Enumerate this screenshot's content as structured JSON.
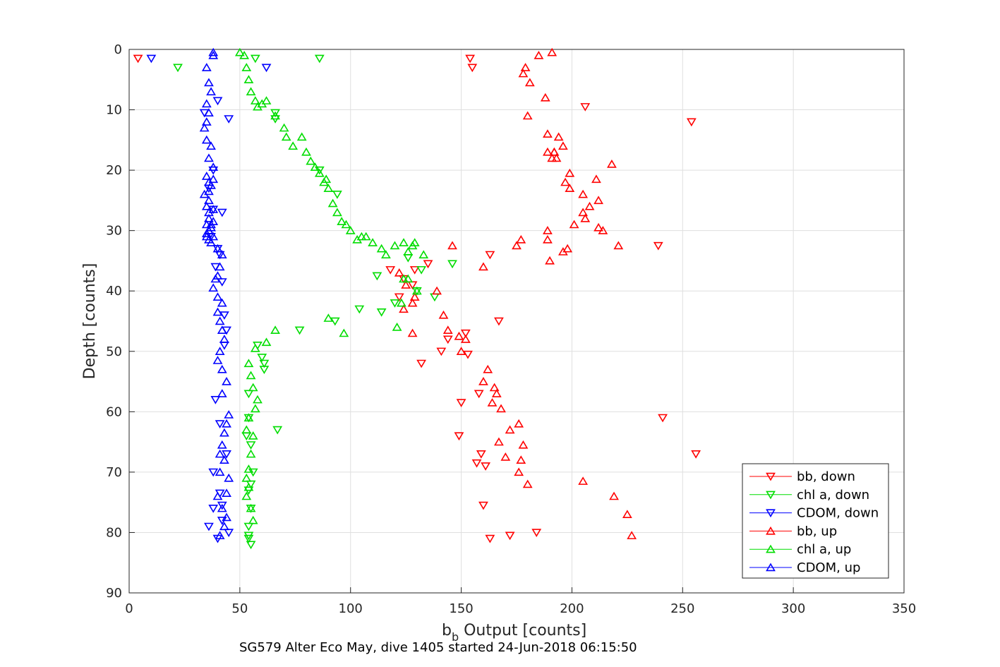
{
  "chart_data": {
    "type": "scatter",
    "xlabel": {
      "base": "b",
      "sub": "b",
      "rest": " Output [counts]"
    },
    "ylabel": "Depth [counts]",
    "subtitle": "SG579 Alter Eco May, dive 1405 started 24-Jun-2018 06:15:50",
    "xlim": [
      0,
      350
    ],
    "ylim": [
      0,
      90
    ],
    "y_reversed": true,
    "xticks": [
      "0",
      "50",
      "100",
      "150",
      "200",
      "250",
      "300",
      "350"
    ],
    "yticks": [
      "0",
      "10",
      "20",
      "30",
      "40",
      "50",
      "60",
      "70",
      "80",
      "90"
    ],
    "grid": true,
    "legend_position": "bottom-right",
    "series": [
      {
        "name": "bb, down",
        "color": "#ff0000",
        "marker": "triangle-down",
        "x": [
          4,
          154,
          155,
          206,
          254,
          239,
          135,
          129,
          124,
          128,
          122,
          118,
          132,
          141,
          150,
          158,
          163,
          159,
          161,
          157,
          167,
          172,
          184,
          241,
          256,
          163,
          160,
          149,
          144,
          152,
          153
        ],
        "y": [
          1.5,
          1.5,
          3,
          9.5,
          12,
          32.5,
          35.5,
          36.5,
          38,
          39,
          41,
          36.5,
          52,
          50,
          58.5,
          57,
          34,
          67,
          69,
          68.5,
          45,
          80.5,
          80,
          61,
          67,
          81,
          75.5,
          64,
          48,
          47,
          50.5
        ]
      },
      {
        "name": "chl a, down",
        "color": "#00dd00",
        "marker": "triangle-down",
        "x": [
          22,
          57,
          86,
          66,
          66,
          86,
          94,
          104,
          146,
          132,
          126,
          130,
          138,
          120,
          114,
          112,
          93,
          77,
          67,
          61,
          60,
          61,
          58,
          54,
          54,
          53,
          55,
          56,
          55,
          54,
          55,
          54,
          54,
          54,
          55
        ],
        "y": [
          3,
          1.5,
          1.5,
          10.5,
          11.5,
          20,
          24,
          43,
          35.5,
          36.5,
          34.5,
          40,
          41,
          42,
          43.5,
          37.5,
          45,
          46.5,
          63,
          53,
          51,
          52,
          49,
          57,
          61,
          64,
          65.5,
          70,
          72,
          73,
          76,
          79,
          80.5,
          81,
          82
        ]
      },
      {
        "name": "CDOM, down",
        "color": "#0000ff",
        "marker": "triangle-down",
        "x": [
          10,
          62,
          45,
          38,
          36,
          34,
          40,
          38,
          37,
          40,
          39,
          42,
          44,
          43,
          39,
          41,
          38,
          41,
          42,
          38,
          36,
          40,
          42,
          41,
          42,
          43,
          44,
          45
        ],
        "y": [
          1.5,
          3,
          11.5,
          20,
          23,
          10.5,
          8.5,
          26.5,
          31,
          33,
          36,
          38.5,
          46.5,
          49,
          58,
          62,
          70,
          73.5,
          75.5,
          76,
          79,
          81,
          78,
          34,
          27,
          44,
          67,
          80
        ]
      },
      {
        "name": "bb, up",
        "color": "#ff0000",
        "marker": "triangle-up",
        "x": [
          191,
          185,
          179,
          178,
          181,
          188,
          180,
          189,
          194,
          196,
          192,
          193,
          199,
          197,
          218,
          211,
          205,
          212,
          205,
          206,
          201,
          208,
          214,
          212,
          199,
          221,
          196,
          189,
          189,
          198,
          190,
          175,
          177,
          146,
          160,
          125,
          122,
          128,
          139,
          129,
          124,
          142,
          149,
          128,
          144,
          152,
          150,
          162,
          160,
          165,
          166,
          164,
          168,
          172,
          176,
          178,
          167,
          170,
          177,
          176,
          180,
          205,
          219,
          225,
          227,
          191,
          189,
          192
        ],
        "y": [
          0.5,
          1,
          3,
          4,
          5.5,
          8,
          11,
          14,
          14.5,
          16,
          17,
          18,
          20.5,
          22,
          19,
          21.5,
          24,
          25,
          27,
          28,
          29,
          26,
          30,
          29.5,
          23,
          32.5,
          33.5,
          30,
          31.5,
          33,
          35,
          32.5,
          31.5,
          32.5,
          36,
          39,
          37,
          42,
          40,
          41,
          43,
          44,
          47.5,
          47,
          46.5,
          48,
          50,
          53,
          55,
          56,
          57,
          58.5,
          59.5,
          63,
          62,
          65.5,
          65,
          67.5,
          68,
          70,
          72,
          71.5,
          74,
          77,
          80.5,
          18,
          17,
          17
        ]
      },
      {
        "name": "chl a, up",
        "color": "#00dd00",
        "marker": "triangle-up",
        "x": [
          50,
          52,
          53,
          54,
          55,
          57,
          58,
          60,
          62,
          66,
          70,
          71,
          74,
          78,
          80,
          82,
          84,
          86,
          88,
          89,
          90,
          92,
          94,
          96,
          98,
          100,
          103,
          105,
          107,
          110,
          114,
          116,
          120,
          124,
          128,
          126,
          124,
          130,
          133,
          126,
          129,
          123,
          90,
          97,
          121,
          66,
          62,
          57,
          54,
          55,
          56,
          58,
          57,
          54,
          53,
          56,
          55,
          54,
          53,
          54,
          53,
          55,
          56
        ],
        "y": [
          0.5,
          1,
          3,
          5,
          7,
          8.5,
          9.5,
          9,
          8.5,
          11,
          13,
          14.5,
          16,
          14.5,
          17,
          18.5,
          19.5,
          20.5,
          22,
          21.5,
          23,
          25.5,
          27,
          28.5,
          29,
          30,
          31.5,
          31,
          31,
          32,
          33,
          34,
          32.5,
          32,
          32.5,
          33.5,
          38,
          40,
          34,
          38,
          32,
          42,
          44.5,
          47,
          46,
          46.5,
          48.5,
          49.5,
          52,
          54,
          56,
          58,
          59.5,
          61,
          63,
          64,
          67,
          69.5,
          71,
          72.5,
          74,
          76,
          78
        ]
      },
      {
        "name": "CDOM, up",
        "color": "#0000ff",
        "marker": "triangle-up",
        "x": [
          38,
          38,
          35,
          36,
          37,
          35,
          36,
          35,
          34,
          35,
          37,
          36,
          38,
          35,
          36,
          34,
          36,
          38,
          36,
          35,
          37,
          36,
          38,
          37,
          36,
          35,
          35,
          36,
          37,
          38,
          36,
          35,
          36,
          37,
          38,
          40,
          42,
          41,
          40,
          39,
          38,
          40,
          42,
          40,
          41,
          42,
          43,
          41,
          40,
          42,
          44,
          42,
          45,
          44,
          43,
          42,
          41,
          43,
          41,
          45,
          44,
          40,
          42,
          44,
          43,
          41
        ],
        "y": [
          0.5,
          1,
          3,
          5.5,
          7,
          9,
          10.5,
          12,
          13,
          15,
          16,
          18,
          19.5,
          21,
          22,
          24,
          25,
          26.5,
          28,
          29,
          29.5,
          30,
          31,
          32,
          31.5,
          31,
          30.5,
          30,
          29,
          28.5,
          27,
          26,
          23.5,
          22.5,
          21.5,
          33,
          34,
          36,
          37.5,
          38,
          39.5,
          41,
          42,
          43.5,
          45,
          46.5,
          48,
          50,
          51.5,
          53,
          55,
          57,
          60.5,
          62,
          63.5,
          65.5,
          67,
          68,
          70,
          71,
          73.5,
          74,
          76,
          77.5,
          79,
          80.5
        ]
      }
    ]
  }
}
